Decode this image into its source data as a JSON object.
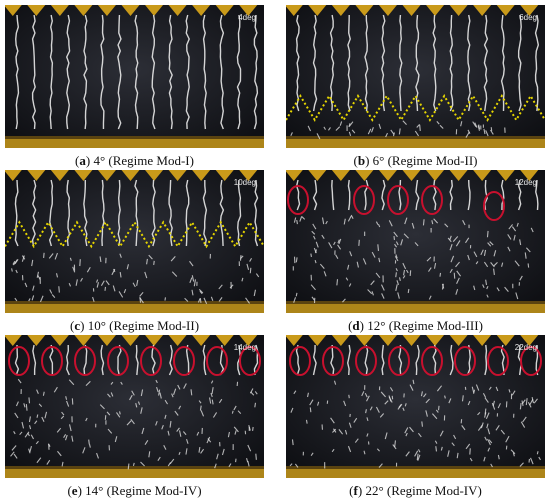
{
  "panels": [
    {
      "id": "a",
      "letter": "a",
      "angle_text": " 4° (Regime Mod-I)",
      "corner_label": "4deg",
      "show_wave": false,
      "wave_level": 0,
      "circles": 0,
      "circle_pattern": "none",
      "vortex_density": "none"
    },
    {
      "id": "b",
      "letter": "b",
      "angle_text": " 6° (Regime Mod-II)",
      "corner_label": "6deg",
      "show_wave": true,
      "wave_level": 0.72,
      "circles": 0,
      "circle_pattern": "none",
      "vortex_density": "low"
    },
    {
      "id": "c",
      "letter": "c",
      "angle_text": " 10° (Regime Mod-II)",
      "corner_label": "10deg",
      "show_wave": true,
      "wave_level": 0.45,
      "circles": 0,
      "circle_pattern": "none",
      "vortex_density": "medium"
    },
    {
      "id": "d",
      "letter": "d",
      "angle_text": " 12° (Regime Mod-III)",
      "corner_label": "12deg",
      "show_wave": false,
      "wave_level": 0,
      "circles": 5,
      "circle_pattern": "sparse",
      "vortex_density": "high"
    },
    {
      "id": "e",
      "letter": "e",
      "angle_text": " 14° (Regime Mod-IV)",
      "corner_label": "14deg",
      "show_wave": false,
      "wave_level": 0,
      "circles": 8,
      "circle_pattern": "row",
      "vortex_density": "high"
    },
    {
      "id": "f",
      "letter": "f",
      "angle_text": " 22° (Regime Mod-IV)",
      "corner_label": "22deg",
      "show_wave": false,
      "wave_level": 0,
      "circles": 8,
      "circle_pattern": "row",
      "vortex_density": "high"
    }
  ],
  "colors": {
    "background": "#0f1014",
    "tuft": "#e9e9e9",
    "wave": "#e6d600",
    "circle": "#c8102e",
    "gold": "#c99a1a"
  }
}
